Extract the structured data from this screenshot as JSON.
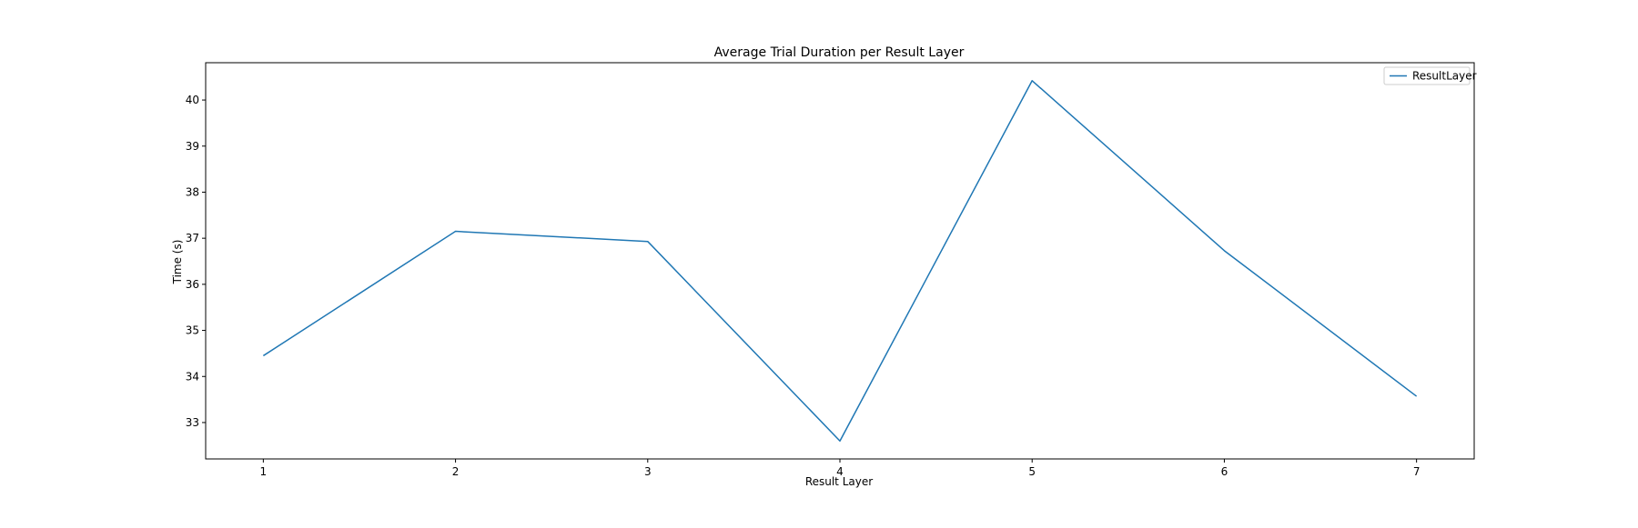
{
  "chart_data": {
    "type": "line",
    "title": "Average Trial Duration per Result Layer",
    "xlabel": "Result Layer",
    "ylabel": "Time (s)",
    "x": [
      1,
      2,
      3,
      4,
      5,
      6,
      7
    ],
    "xticks": [
      "1",
      "2",
      "3",
      "4",
      "5",
      "6",
      "7"
    ],
    "yticks": [
      "33",
      "34",
      "35",
      "36",
      "37",
      "38",
      "39",
      "40"
    ],
    "xlim": [
      0.7,
      7.3
    ],
    "ylim": [
      32.21,
      40.81
    ],
    "series": [
      {
        "name": "ResultLayer",
        "color": "#1f77b4",
        "values": [
          34.45,
          37.15,
          36.93,
          32.6,
          40.42,
          36.73,
          33.57
        ]
      }
    ],
    "grid": false,
    "legend": "top-right"
  }
}
